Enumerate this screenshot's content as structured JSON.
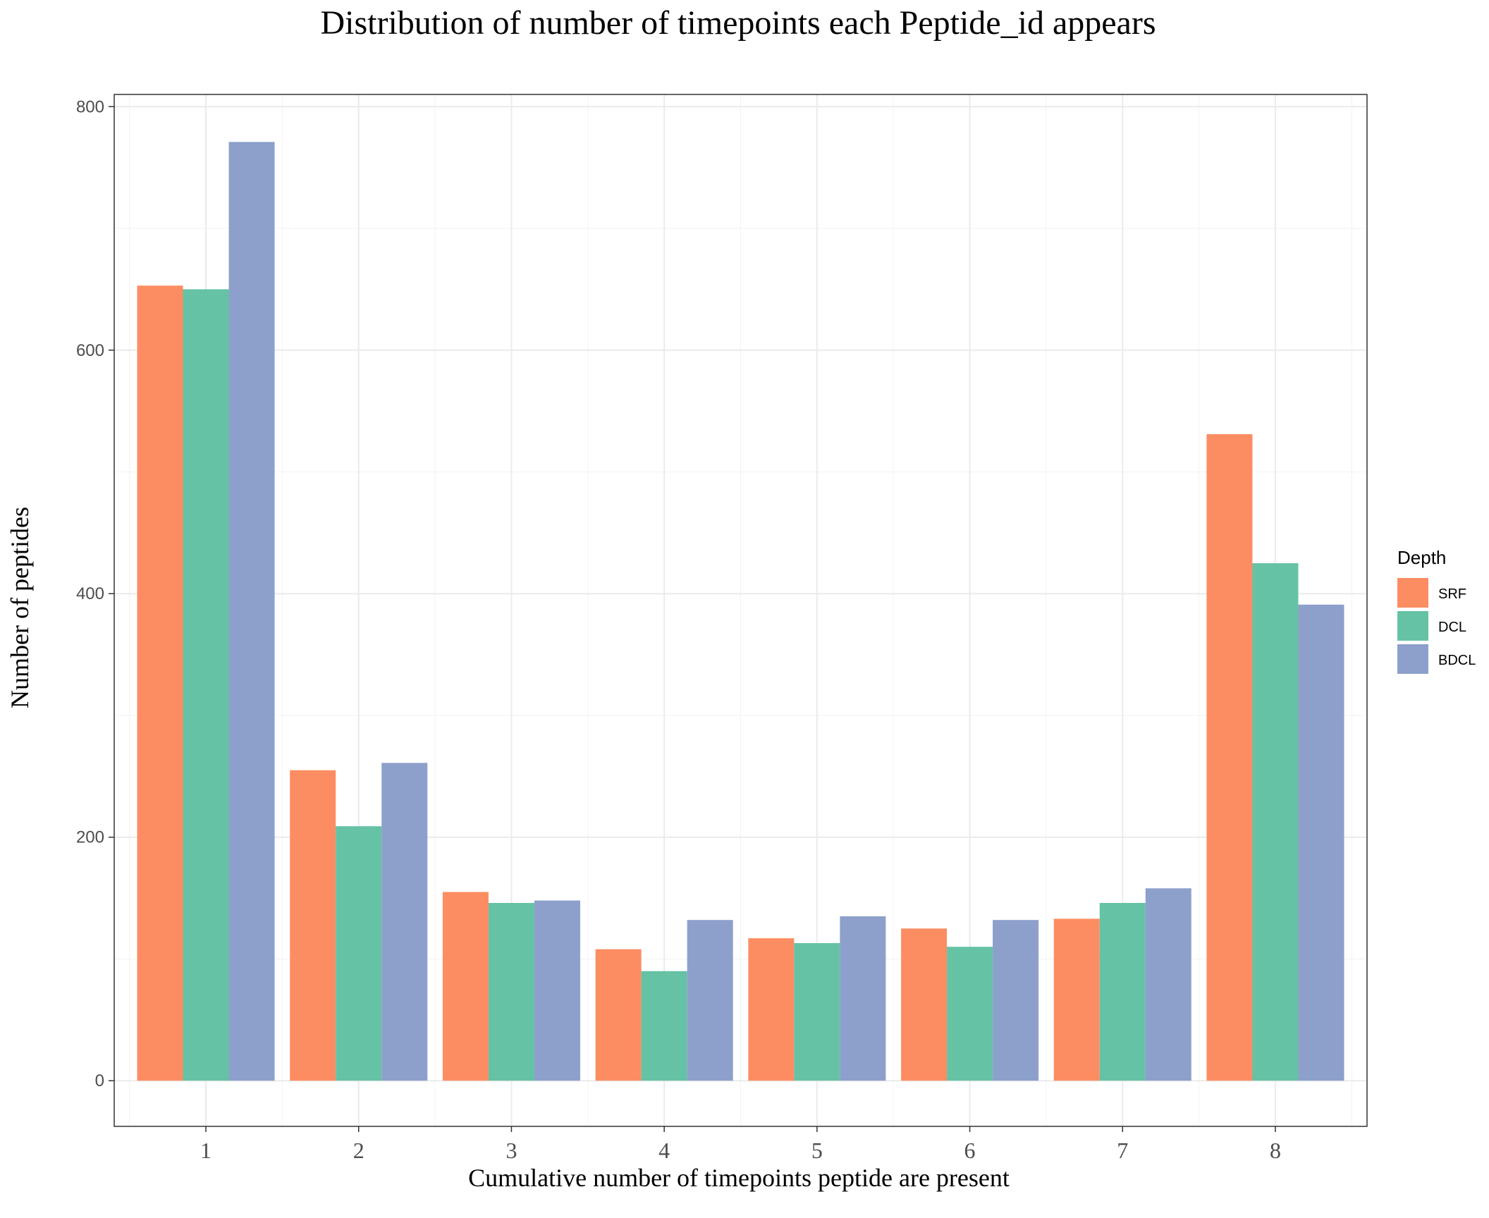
{
  "chart_data": {
    "type": "bar",
    "title": "Distribution of number of timepoints each Peptide_id appears",
    "xlabel": "Cumulative number of timepoints peptide are present",
    "ylabel": "Number of peptides",
    "categories": [
      "1",
      "2",
      "3",
      "4",
      "5",
      "6",
      "7",
      "8"
    ],
    "series": [
      {
        "name": "SRF",
        "color": "#fc8d62",
        "values": [
          653,
          255,
          155,
          108,
          117,
          125,
          133,
          531
        ]
      },
      {
        "name": "DCL",
        "color": "#66c2a5",
        "values": [
          650,
          209,
          146,
          90,
          113,
          110,
          146,
          425
        ]
      },
      {
        "name": "BDCL",
        "color": "#8da0cb",
        "values": [
          771,
          261,
          148,
          132,
          135,
          132,
          158,
          391
        ]
      }
    ],
    "ylim": [
      -37.5,
      810
    ],
    "yticks": [
      0,
      200,
      400,
      600,
      800
    ],
    "grid": true,
    "legend": {
      "title": "Depth",
      "position": "right"
    }
  }
}
